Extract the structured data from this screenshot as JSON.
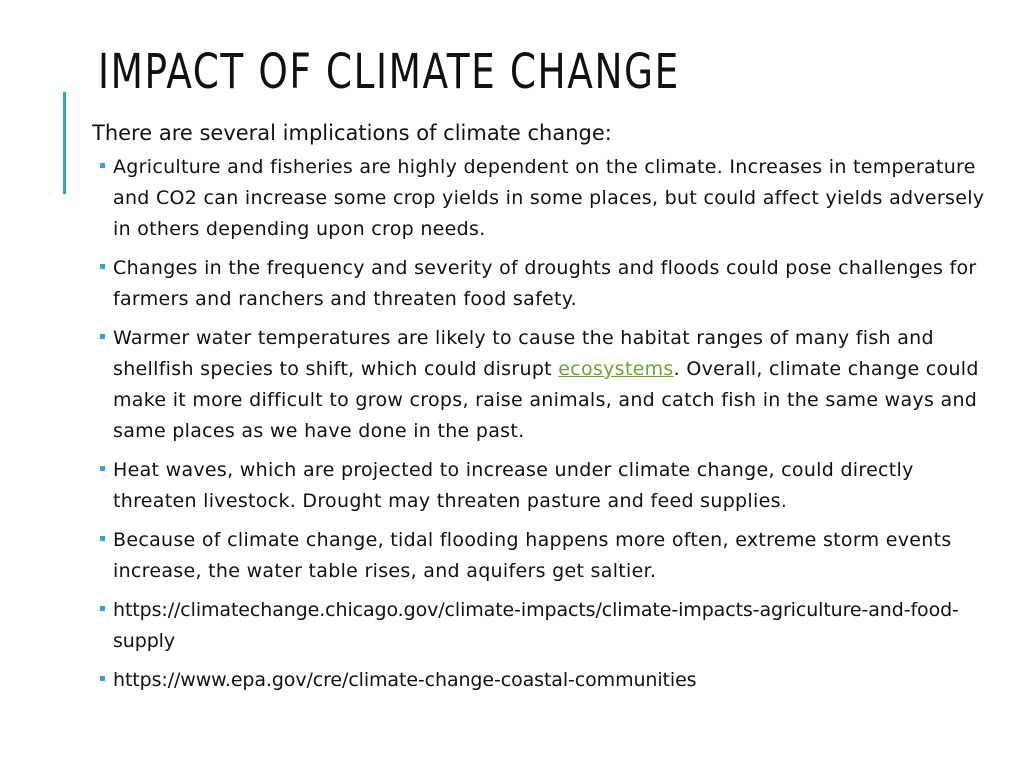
{
  "slide": {
    "title": "Impact of Climate Change",
    "accent_color": "#2ea3d0",
    "link_color": "#6aa534",
    "intro": "There are several implications of climate change:",
    "bullets": [
      {
        "text": "Agriculture and fisheries are highly dependent on the climate. Increases in temperature and CO2 can increase some crop yields in some places, but could affect yields adversely in others depending upon crop needs."
      },
      {
        "text": "Changes in the frequency and severity of droughts and floods could pose challenges for farmers and ranchers and threaten food safety."
      },
      {
        "text_before": "Warmer water temperatures are likely to cause the habitat ranges of many fish and shellfish species to shift, which could disrupt ",
        "link_text": "ecosystems",
        "text_after": ". Overall, climate change could make it more difficult to grow crops, raise animals, and catch fish in the same ways and same places as we have done in the past."
      },
      {
        "text": "Heat waves, which are projected to increase under climate change, could directly threaten livestock. Drought may threaten pasture and feed supplies."
      },
      {
        "text": "Because of climate change, tidal flooding happens more often, extreme storm events increase, the water table rises, and aquifers get saltier."
      },
      {
        "text": "https://climatechange.chicago.gov/climate-impacts/climate-impacts-agriculture-and-food-supply"
      },
      {
        "text": "https://www.epa.gov/cre/climate-change-coastal-communities"
      }
    ]
  }
}
